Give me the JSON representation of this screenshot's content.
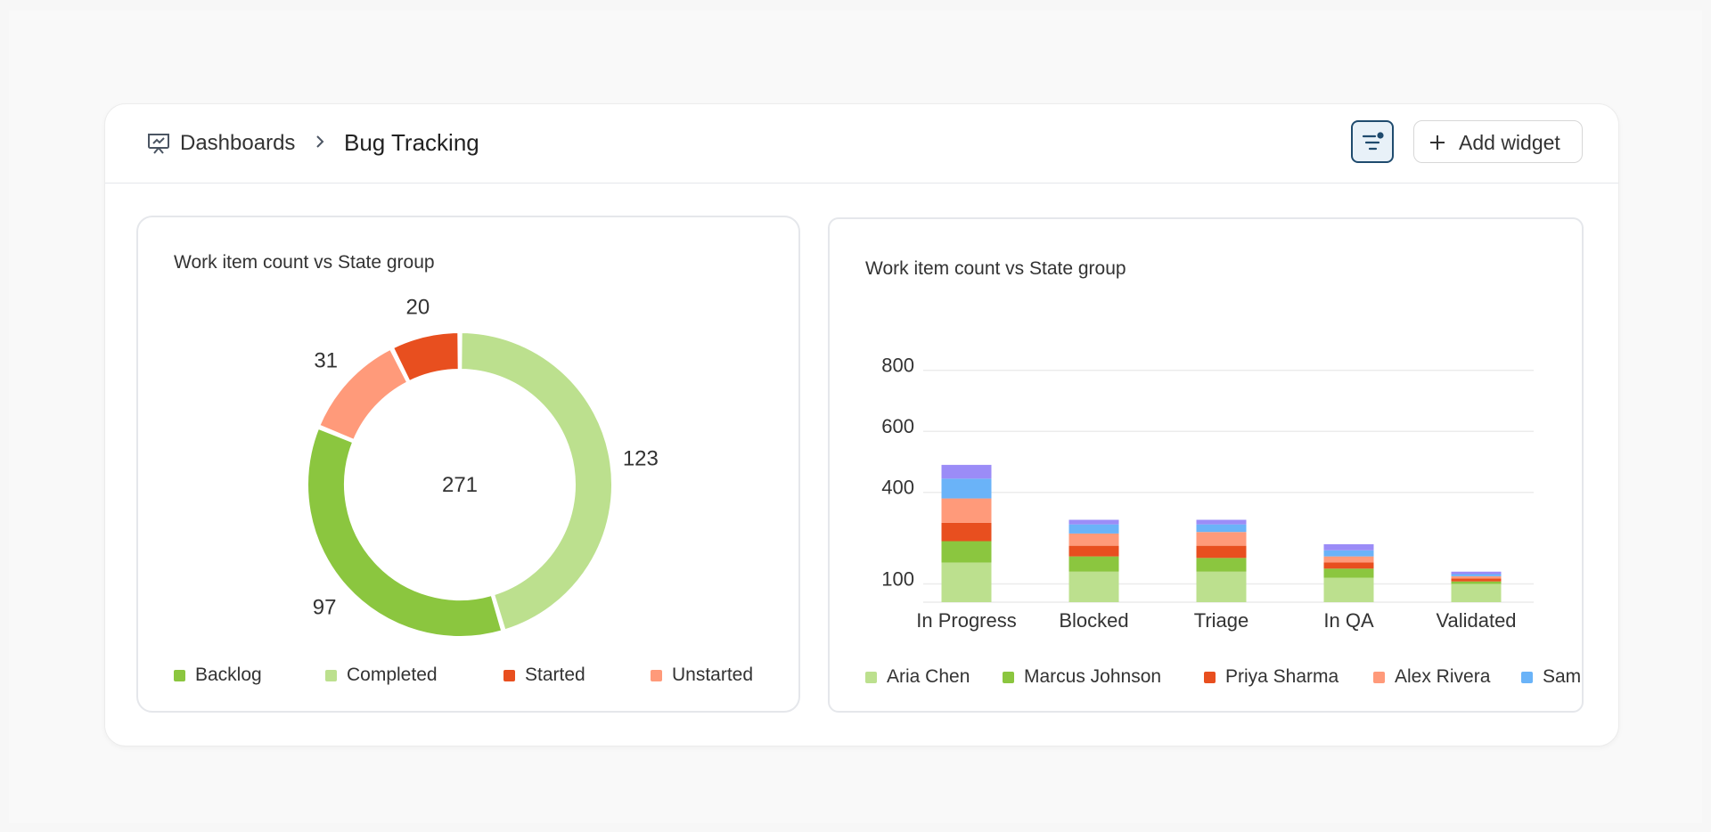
{
  "header": {
    "breadcrumb_root": "Dashboards",
    "breadcrumb_current": "Bug Tracking",
    "add_widget_label": "Add widget"
  },
  "donut_card": {
    "title": "Work item count vs State group",
    "chart_data": {
      "type": "pie",
      "title": "Work item count vs State group",
      "center_label": "271",
      "slices": [
        {
          "label": "Completed",
          "value": 123,
          "color": "#bce08e"
        },
        {
          "label": "Backlog",
          "value": 97,
          "color": "#8bc63f"
        },
        {
          "label": "Unstarted",
          "value": 31,
          "color": "#ff9a7a"
        },
        {
          "label": "Started",
          "value": 20,
          "color": "#e84f1f"
        }
      ],
      "legend": [
        {
          "label": "Backlog",
          "color": "#8bc63f"
        },
        {
          "label": "Completed",
          "color": "#bce08e"
        },
        {
          "label": "Started",
          "color": "#e84f1f"
        },
        {
          "label": "Unstarted",
          "color": "#ff9a7a"
        }
      ],
      "legend_placement": "bottom"
    }
  },
  "bar_card": {
    "title": "Work item count vs State group",
    "chart_data": {
      "type": "bar",
      "stacked": true,
      "title": "Work item count vs State group",
      "categories": [
        "In Progress",
        "Blocked",
        "Triage",
        "In QA",
        "Validated"
      ],
      "y_ticks": [
        100,
        400,
        600,
        800
      ],
      "ylim": [
        40,
        840
      ],
      "grid": true,
      "series": [
        {
          "name": "Aria Chen",
          "color": "#bce08e",
          "values": [
            130,
            100,
            100,
            80,
            60
          ]
        },
        {
          "name": "Marcus Johnson",
          "color": "#8bc63f",
          "values": [
            70,
            50,
            45,
            30,
            8
          ]
        },
        {
          "name": "Priya Sharma",
          "color": "#e84f1f",
          "values": [
            60,
            35,
            40,
            20,
            10
          ]
        },
        {
          "name": "Alex Rivera",
          "color": "#ff9a7a",
          "values": [
            80,
            40,
            45,
            20,
            7
          ]
        },
        {
          "name": "Sam",
          "color": "#6ab3f8",
          "values": [
            65,
            30,
            25,
            20,
            7
          ]
        },
        {
          "name": "",
          "color": "#9b8cf7",
          "values": [
            45,
            15,
            15,
            20,
            8
          ]
        }
      ],
      "legend": [
        {
          "label": "Aria Chen",
          "color": "#bce08e"
        },
        {
          "label": "Marcus Johnson",
          "color": "#8bc63f"
        },
        {
          "label": "Priya Sharma",
          "color": "#e84f1f"
        },
        {
          "label": "Alex Rivera",
          "color": "#ff9a7a"
        },
        {
          "label": "Sam",
          "color": "#6ab3f8"
        }
      ],
      "legend_placement": "bottom"
    }
  }
}
